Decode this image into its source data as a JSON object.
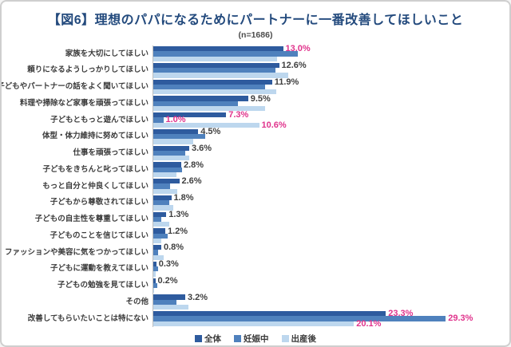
{
  "header": {
    "title": "【図6】理想のパパになるためにパートナーに一番改善してほしいこと",
    "subtitle": "(n=1686)",
    "title_color": "#234A7D"
  },
  "chart_data": {
    "type": "bar",
    "orientation": "horizontal",
    "x_unit": "percent",
    "xlim": [
      0,
      31
    ],
    "grid": false,
    "legend_position": "bottom",
    "title": "【図6】理想のパパになるためにパートナーに一番改善してほしいこと",
    "subtitle": "(n=1686)",
    "categories": [
      "家族を大切にしてほしい",
      "頼りになるようしっかりしてほしい",
      "子どもやパートナーの話をよく聞いてほしい",
      "料理や掃除など家事を頑張ってほしい",
      "子どもともっと遊んでほしい",
      "体型・体力維持に努めてほしい",
      "仕事を頑張ってほしい",
      "子どもをきちんと叱ってほしい",
      "もっと自分と仲良くしてほしい",
      "子どもから尊敬されてほしい",
      "子どもの自主性を尊重してほしい",
      "子どものことを信じてほしい",
      "ファッションや美容に気をつかってほしい",
      "子どもに運動を教えてほしい",
      "子どもの勉強を見てほしい",
      "その他",
      "改善してもらいたいことは特にない"
    ],
    "series": [
      {
        "name": "全体",
        "color": "#2E5B9E",
        "values": [
          13.0,
          12.6,
          11.9,
          9.5,
          7.3,
          4.5,
          3.6,
          2.8,
          2.6,
          1.8,
          1.3,
          1.2,
          0.8,
          0.3,
          0.2,
          3.2,
          23.3
        ]
      },
      {
        "name": "妊娠中",
        "color": "#4F81BD",
        "values": [
          14.5,
          12.2,
          11.2,
          8.5,
          1.0,
          5.2,
          3.2,
          2.9,
          1.7,
          1.6,
          0.8,
          1.4,
          0.5,
          0.5,
          0.4,
          2.3,
          29.3
        ]
      },
      {
        "name": "出産後",
        "color": "#BDD7EE",
        "values": [
          12.4,
          13.5,
          12.3,
          11.2,
          10.6,
          4.0,
          3.6,
          2.3,
          2.4,
          2.0,
          1.6,
          0.8,
          1.0,
          0.2,
          0.1,
          3.5,
          20.1
        ]
      }
    ],
    "value_labels": [
      {
        "category_index": 0,
        "series_index": 0,
        "text": "13.0%",
        "highlight": true
      },
      {
        "category_index": 1,
        "series_index": 0,
        "text": "12.6%",
        "highlight": false
      },
      {
        "category_index": 2,
        "series_index": 0,
        "text": "11.9%",
        "highlight": false
      },
      {
        "category_index": 3,
        "series_index": 0,
        "text": "9.5%",
        "highlight": false
      },
      {
        "category_index": 4,
        "series_index": 0,
        "text": "7.3%",
        "highlight": true
      },
      {
        "category_index": 4,
        "series_index": 1,
        "text": "1.0%",
        "highlight": true
      },
      {
        "category_index": 4,
        "series_index": 2,
        "text": "10.6%",
        "highlight": true
      },
      {
        "category_index": 5,
        "series_index": 0,
        "text": "4.5%",
        "highlight": false
      },
      {
        "category_index": 6,
        "series_index": 0,
        "text": "3.6%",
        "highlight": false
      },
      {
        "category_index": 7,
        "series_index": 0,
        "text": "2.8%",
        "highlight": false
      },
      {
        "category_index": 8,
        "series_index": 0,
        "text": "2.6%",
        "highlight": false
      },
      {
        "category_index": 9,
        "series_index": 0,
        "text": "1.8%",
        "highlight": false
      },
      {
        "category_index": 10,
        "series_index": 0,
        "text": "1.3%",
        "highlight": false
      },
      {
        "category_index": 11,
        "series_index": 0,
        "text": "1.2%",
        "highlight": false
      },
      {
        "category_index": 12,
        "series_index": 0,
        "text": "0.8%",
        "highlight": false
      },
      {
        "category_index": 13,
        "series_index": 0,
        "text": "0.3%",
        "highlight": false
      },
      {
        "category_index": 14,
        "series_index": 0,
        "text": "0.2%",
        "highlight": false
      },
      {
        "category_index": 15,
        "series_index": 0,
        "text": "3.2%",
        "highlight": false
      },
      {
        "category_index": 16,
        "series_index": 0,
        "text": "23.3%",
        "highlight": true
      },
      {
        "category_index": 16,
        "series_index": 1,
        "text": "29.3%",
        "highlight": true
      },
      {
        "category_index": 16,
        "series_index": 2,
        "text": "20.1%",
        "highlight": true
      }
    ],
    "label_colors": {
      "normal": "#3F3F3F",
      "highlight": "#E0338C"
    },
    "legend": [
      "全体",
      "妊娠中",
      "出産後"
    ]
  }
}
